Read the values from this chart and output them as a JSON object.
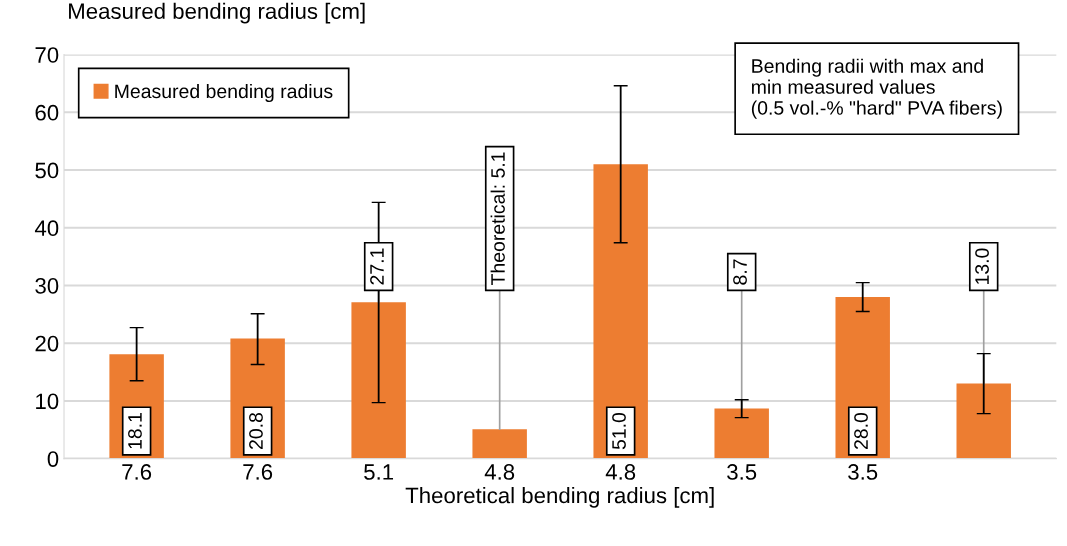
{
  "chart_data": {
    "type": "bar",
    "ylabel": "Measured bending radius [cm]",
    "xlabel": "Theoretical bending radius [cm]",
    "categories": [
      "7.6",
      "7.6",
      "5.1",
      "4.8",
      "4.8",
      "3.5",
      "3.5",
      null
    ],
    "series": [
      {
        "name": "Measured bending radius",
        "color": "#ed7d31",
        "values": [
          18.1,
          20.8,
          27.1,
          5.1,
          51.0,
          8.7,
          28.0,
          13.0
        ],
        "errors": [
          [
            13.5,
            22.7
          ],
          [
            16.3,
            25.1
          ],
          [
            9.7,
            44.4
          ],
          null,
          [
            37.4,
            64.6
          ],
          [
            7.1,
            10.2
          ],
          [
            25.5,
            30.5
          ],
          [
            7.8,
            18.2
          ]
        ],
        "value_labels": [
          "18.1",
          "20.8",
          "27.1",
          "Theoretical: 5.1",
          "51.0",
          "8.7",
          "28.0",
          "13.0"
        ]
      }
    ],
    "ylim": [
      0,
      70
    ],
    "yticks": [
      0,
      10,
      20,
      30,
      40,
      50,
      60,
      70
    ],
    "grid": "y",
    "legend": "top left",
    "annotations": [
      "Bending radii with max and\nmin measured values\n(0.5 vol.-% \"hard\" PVA fibers)"
    ]
  }
}
